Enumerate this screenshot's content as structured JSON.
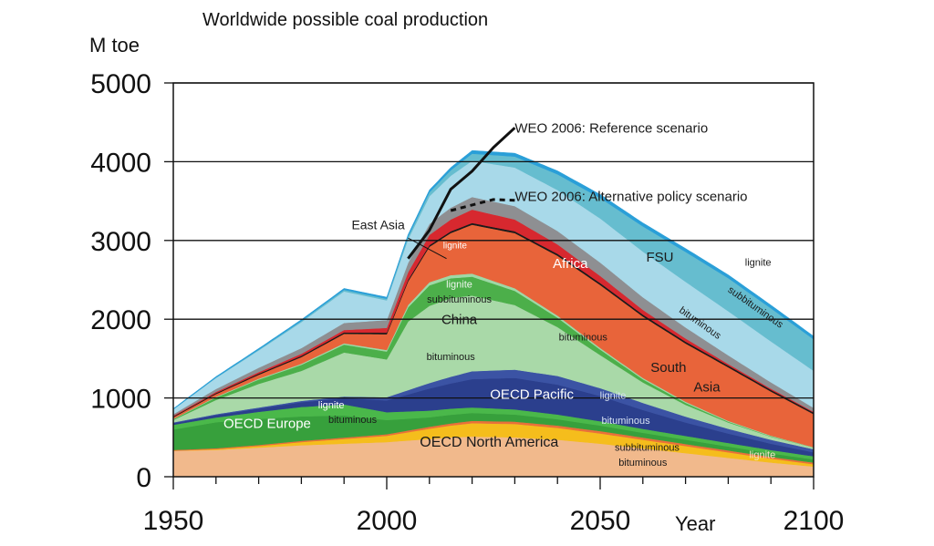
{
  "chart_data": {
    "type": "area",
    "title": "Worldwide possible coal production",
    "ylabel": "M toe",
    "xlabel": "Year",
    "xlim": [
      1950,
      2100
    ],
    "ylim": [
      0,
      5000
    ],
    "x_ticks": [
      1950,
      2000,
      2050,
      2100
    ],
    "x_tick_labels": [
      "1950",
      "2000",
      "2050",
      "2100"
    ],
    "y_ticks": [
      0,
      1000,
      2000,
      3000,
      4000,
      5000
    ],
    "y_tick_labels": [
      "0",
      "1000",
      "2000",
      "3000",
      "4000",
      "5000"
    ],
    "grid": "horizontal",
    "stack_order": [
      "OECD North America",
      "OECD Europe",
      "OECD Pacific",
      "China",
      "East Asia",
      "South Asia",
      "Africa",
      "FSU"
    ],
    "series": [
      {
        "name": "OECD North America",
        "color": "#f1b98c",
        "values": [
          [
            1950,
            330
          ],
          [
            1960,
            340
          ],
          [
            1970,
            370
          ],
          [
            1980,
            400
          ],
          [
            1990,
            420
          ],
          [
            2000,
            440
          ],
          [
            2005,
            460
          ],
          [
            2010,
            480
          ],
          [
            2015,
            500
          ],
          [
            2020,
            510
          ],
          [
            2030,
            500
          ],
          [
            2040,
            470
          ],
          [
            2050,
            420
          ],
          [
            2060,
            360
          ],
          [
            2070,
            300
          ],
          [
            2080,
            240
          ],
          [
            2090,
            180
          ],
          [
            2100,
            130
          ]
        ]
      },
      {
        "name": "OECD North America",
        "color": "#f5bd1c",
        "values": [
          [
            1950,
            0
          ],
          [
            1970,
            20
          ],
          [
            1980,
            40
          ],
          [
            1990,
            60
          ],
          [
            2000,
            80
          ],
          [
            2010,
            130
          ],
          [
            2020,
            170
          ],
          [
            2030,
            170
          ],
          [
            2040,
            150
          ],
          [
            2050,
            130
          ],
          [
            2060,
            110
          ],
          [
            2070,
            90
          ],
          [
            2080,
            70
          ],
          [
            2090,
            50
          ],
          [
            2100,
            30
          ]
        ]
      },
      {
        "name": "OECD North America",
        "color": "#e9703a",
        "values": [
          [
            1950,
            10
          ],
          [
            2000,
            20
          ],
          [
            2020,
            30
          ],
          [
            2050,
            30
          ],
          [
            2100,
            20
          ]
        ]
      },
      {
        "name": "OECD Europe",
        "color": "#37a03c",
        "values": [
          [
            1950,
            260
          ],
          [
            1960,
            330
          ],
          [
            1970,
            330
          ],
          [
            1980,
            310
          ],
          [
            1990,
            280
          ],
          [
            2000,
            180
          ],
          [
            2010,
            120
          ],
          [
            2020,
            100
          ],
          [
            2040,
            80
          ],
          [
            2060,
            60
          ],
          [
            2080,
            50
          ],
          [
            2100,
            40
          ]
        ]
      },
      {
        "name": "OECD Europe",
        "color": "#4ab84a",
        "values": [
          [
            1950,
            60
          ],
          [
            1960,
            60
          ],
          [
            1980,
            120
          ],
          [
            1990,
            140
          ],
          [
            2000,
            100
          ],
          [
            2020,
            70
          ],
          [
            2060,
            50
          ],
          [
            2100,
            40
          ]
        ]
      },
      {
        "name": "OECD Pacific",
        "color": "#2b3f8d",
        "values": [
          [
            1950,
            20
          ],
          [
            1970,
            40
          ],
          [
            1990,
            80
          ],
          [
            2000,
            150
          ],
          [
            2010,
            280
          ],
          [
            2020,
            360
          ],
          [
            2030,
            400
          ],
          [
            2040,
            380
          ],
          [
            2050,
            320
          ],
          [
            2060,
            240
          ],
          [
            2070,
            170
          ],
          [
            2080,
            120
          ],
          [
            2090,
            80
          ],
          [
            2100,
            50
          ]
        ]
      },
      {
        "name": "OECD Pacific",
        "color": "#3b53a4",
        "values": [
          [
            1950,
            10
          ],
          [
            1990,
            20
          ],
          [
            2000,
            40
          ],
          [
            2010,
            70
          ],
          [
            2020,
            100
          ],
          [
            2040,
            110
          ],
          [
            2060,
            90
          ],
          [
            2080,
            60
          ],
          [
            2100,
            40
          ]
        ]
      },
      {
        "name": "China",
        "color": "#a9d9a8",
        "values": [
          [
            1950,
            30
          ],
          [
            1960,
            180
          ],
          [
            1970,
            300
          ],
          [
            1980,
            380
          ],
          [
            1990,
            560
          ],
          [
            2000,
            480
          ],
          [
            2005,
            870
          ],
          [
            2010,
            980
          ],
          [
            2015,
            1000
          ],
          [
            2020,
            960
          ],
          [
            2030,
            820
          ],
          [
            2040,
            620
          ],
          [
            2050,
            420
          ],
          [
            2060,
            260
          ],
          [
            2070,
            150
          ],
          [
            2080,
            80
          ],
          [
            2090,
            40
          ],
          [
            2100,
            20
          ]
        ]
      },
      {
        "name": "China",
        "color": "#4caf4a",
        "values": [
          [
            1950,
            10
          ],
          [
            1990,
            100
          ],
          [
            2000,
            100
          ],
          [
            2005,
            180
          ],
          [
            2010,
            260
          ],
          [
            2020,
            240
          ],
          [
            2030,
            180
          ],
          [
            2040,
            120
          ],
          [
            2050,
            70
          ],
          [
            2060,
            40
          ],
          [
            2080,
            10
          ],
          [
            2100,
            0
          ]
        ]
      },
      {
        "name": "East Asia",
        "color": "#9ed8a6",
        "values": [
          [
            1950,
            5
          ],
          [
            2000,
            20
          ],
          [
            2010,
            40
          ],
          [
            2020,
            40
          ],
          [
            2050,
            20
          ],
          [
            2100,
            5
          ]
        ]
      },
      {
        "name": "South Asia",
        "color": "#e8643a",
        "values": [
          [
            1950,
            20
          ],
          [
            1970,
            50
          ],
          [
            1990,
            120
          ],
          [
            2000,
            200
          ],
          [
            2005,
            300
          ],
          [
            2010,
            450
          ],
          [
            2020,
            620
          ],
          [
            2030,
            700
          ],
          [
            2040,
            760
          ],
          [
            2050,
            800
          ],
          [
            2060,
            780
          ],
          [
            2070,
            740
          ],
          [
            2080,
            680
          ],
          [
            2090,
            560
          ],
          [
            2100,
            420
          ]
        ]
      },
      {
        "name": "South Asia",
        "color": "#1a1a1a",
        "values": [
          [
            1950,
            10
          ],
          [
            2000,
            20
          ],
          [
            2050,
            25
          ],
          [
            2100,
            20
          ]
        ]
      },
      {
        "name": "South Asia",
        "color": "#d7282f",
        "values": [
          [
            1950,
            10
          ],
          [
            1990,
            30
          ],
          [
            2000,
            60
          ],
          [
            2010,
            130
          ],
          [
            2020,
            170
          ],
          [
            2030,
            150
          ],
          [
            2040,
            120
          ],
          [
            2050,
            90
          ],
          [
            2060,
            60
          ],
          [
            2070,
            40
          ],
          [
            2080,
            20
          ],
          [
            2100,
            10
          ]
        ]
      },
      {
        "name": "Africa",
        "color": "#8e8f92",
        "values": [
          [
            1950,
            20
          ],
          [
            1990,
            90
          ],
          [
            2000,
            100
          ],
          [
            2010,
            140
          ],
          [
            2020,
            160
          ],
          [
            2030,
            170
          ],
          [
            2040,
            170
          ],
          [
            2050,
            170
          ],
          [
            2060,
            160
          ],
          [
            2070,
            140
          ],
          [
            2080,
            110
          ],
          [
            2090,
            80
          ],
          [
            2100,
            50
          ]
        ]
      },
      {
        "name": "FSU",
        "color": "#a8d9e9",
        "values": [
          [
            1950,
            60
          ],
          [
            1960,
            140
          ],
          [
            1970,
            220
          ],
          [
            1980,
            330
          ],
          [
            1990,
            400
          ],
          [
            2000,
            250
          ],
          [
            2010,
            350
          ],
          [
            2020,
            460
          ],
          [
            2030,
            490
          ],
          [
            2040,
            520
          ],
          [
            2050,
            560
          ],
          [
            2060,
            580
          ],
          [
            2070,
            580
          ],
          [
            2080,
            560
          ],
          [
            2090,
            520
          ],
          [
            2100,
            470
          ]
        ]
      },
      {
        "name": "FSU",
        "color": "#66bdcf",
        "values": [
          [
            1950,
            0
          ],
          [
            1990,
            20
          ],
          [
            2000,
            20
          ],
          [
            2010,
            50
          ],
          [
            2020,
            90
          ],
          [
            2030,
            140
          ],
          [
            2040,
            200
          ],
          [
            2050,
            260
          ],
          [
            2060,
            320
          ],
          [
            2070,
            380
          ],
          [
            2080,
            420
          ],
          [
            2090,
            420
          ],
          [
            2100,
            400
          ]
        ]
      },
      {
        "name": "FSU",
        "color": "#2a9fd8",
        "values": [
          [
            1950,
            10
          ],
          [
            2000,
            20
          ],
          [
            2020,
            40
          ],
          [
            2050,
            45
          ],
          [
            2100,
            40
          ]
        ]
      }
    ],
    "scenario_lines": [
      {
        "name": "WEO 2006: Reference scenario",
        "style": "solid",
        "values": [
          [
            2005,
            2770
          ],
          [
            2010,
            3130
          ],
          [
            2015,
            3650
          ],
          [
            2020,
            3880
          ],
          [
            2025,
            4180
          ],
          [
            2030,
            4430
          ]
        ]
      },
      {
        "name": "WEO 2006: Alternative policy scenario",
        "style": "dashed",
        "values": [
          [
            2015,
            3380
          ],
          [
            2020,
            3450
          ],
          [
            2025,
            3520
          ],
          [
            2030,
            3510
          ]
        ]
      }
    ],
    "annotations": [
      {
        "text": "OECD North America",
        "x": 2024,
        "y": 380,
        "color": "#1a1a1a",
        "size": 16
      },
      {
        "text": "subbituminous",
        "x": 2061,
        "y": 330,
        "color": "#1a1a1a",
        "size": 11
      },
      {
        "text": "bituminous",
        "x": 2060,
        "y": 140,
        "color": "#1a1a1a",
        "size": 11
      },
      {
        "text": "lignite",
        "x": 2088,
        "y": 240,
        "color": "#f5e2cc",
        "size": 11
      },
      {
        "text": "OECD Europe",
        "x": 1972,
        "y": 620,
        "color": "#ffffff",
        "size": 15
      },
      {
        "text": "lignite",
        "x": 1987,
        "y": 870,
        "color": "#ffffff",
        "size": 11
      },
      {
        "text": "bituminous",
        "x": 1992,
        "y": 680,
        "color": "#1a1a1a",
        "size": 11
      },
      {
        "text": "OECD Pacific",
        "x": 2034,
        "y": 990,
        "color": "#ffffff",
        "size": 15
      },
      {
        "text": "lignite",
        "x": 2053,
        "y": 990,
        "color": "#d7e2f3",
        "size": 11
      },
      {
        "text": "bituminous",
        "x": 2056,
        "y": 670,
        "color": "#d7e2f3",
        "size": 11
      },
      {
        "text": "China",
        "x": 2017,
        "y": 1940,
        "color": "#1a1a1a",
        "size": 15
      },
      {
        "text": "lignite",
        "x": 2017,
        "y": 2400,
        "color": "#f0f6f0",
        "size": 11
      },
      {
        "text": "subbituminous",
        "x": 2017,
        "y": 2210,
        "color": "#1a1a1a",
        "size": 11
      },
      {
        "text": "bituminous",
        "x": 2015,
        "y": 1480,
        "color": "#1a1a1a",
        "size": 11
      },
      {
        "text": "East Asia",
        "x": 1998,
        "y": 3140,
        "color": "#1a1a1a",
        "size": 14
      },
      {
        "text": "lignite",
        "x": 2016,
        "y": 2900,
        "color": "#ffffff",
        "size": 10
      },
      {
        "text": "bituminous",
        "x": 2046,
        "y": 1730,
        "color": "#1a1a1a",
        "size": 11
      },
      {
        "text": "South",
        "x": 2066,
        "y": 1330,
        "color": "#1a1a1a",
        "size": 15
      },
      {
        "text": "Asia",
        "x": 2075,
        "y": 1080,
        "color": "#1a1a1a",
        "size": 15
      },
      {
        "text": "Africa",
        "x": 2043,
        "y": 2650,
        "color": "#ffffff",
        "size": 15
      },
      {
        "text": "FSU",
        "x": 2064,
        "y": 2730,
        "color": "#1a1a1a",
        "size": 15
      },
      {
        "text": "lignite",
        "x": 2087,
        "y": 2680,
        "color": "#1a1a1a",
        "size": 11
      },
      {
        "text": "subbituminous",
        "x": 2086,
        "y": 2120,
        "color": "#1a1a1a",
        "size": 11,
        "rotate": 35
      },
      {
        "text": "bituminous",
        "x": 2073,
        "y": 1920,
        "color": "#1a1a1a",
        "size": 11,
        "rotate": 35
      },
      {
        "text": "WEO 2006: Reference scenario",
        "x": 2030,
        "y": 4370,
        "color": "#1a1a1a",
        "size": 15,
        "anchor": "start"
      },
      {
        "text": "WEO 2006: Alternative policy scenario",
        "x": 2030,
        "y": 3500,
        "color": "#1a1a1a",
        "size": 15,
        "anchor": "start"
      }
    ],
    "leader_line": {
      "from": [
        2005,
        3030
      ],
      "to": [
        2014,
        2770
      ]
    }
  }
}
